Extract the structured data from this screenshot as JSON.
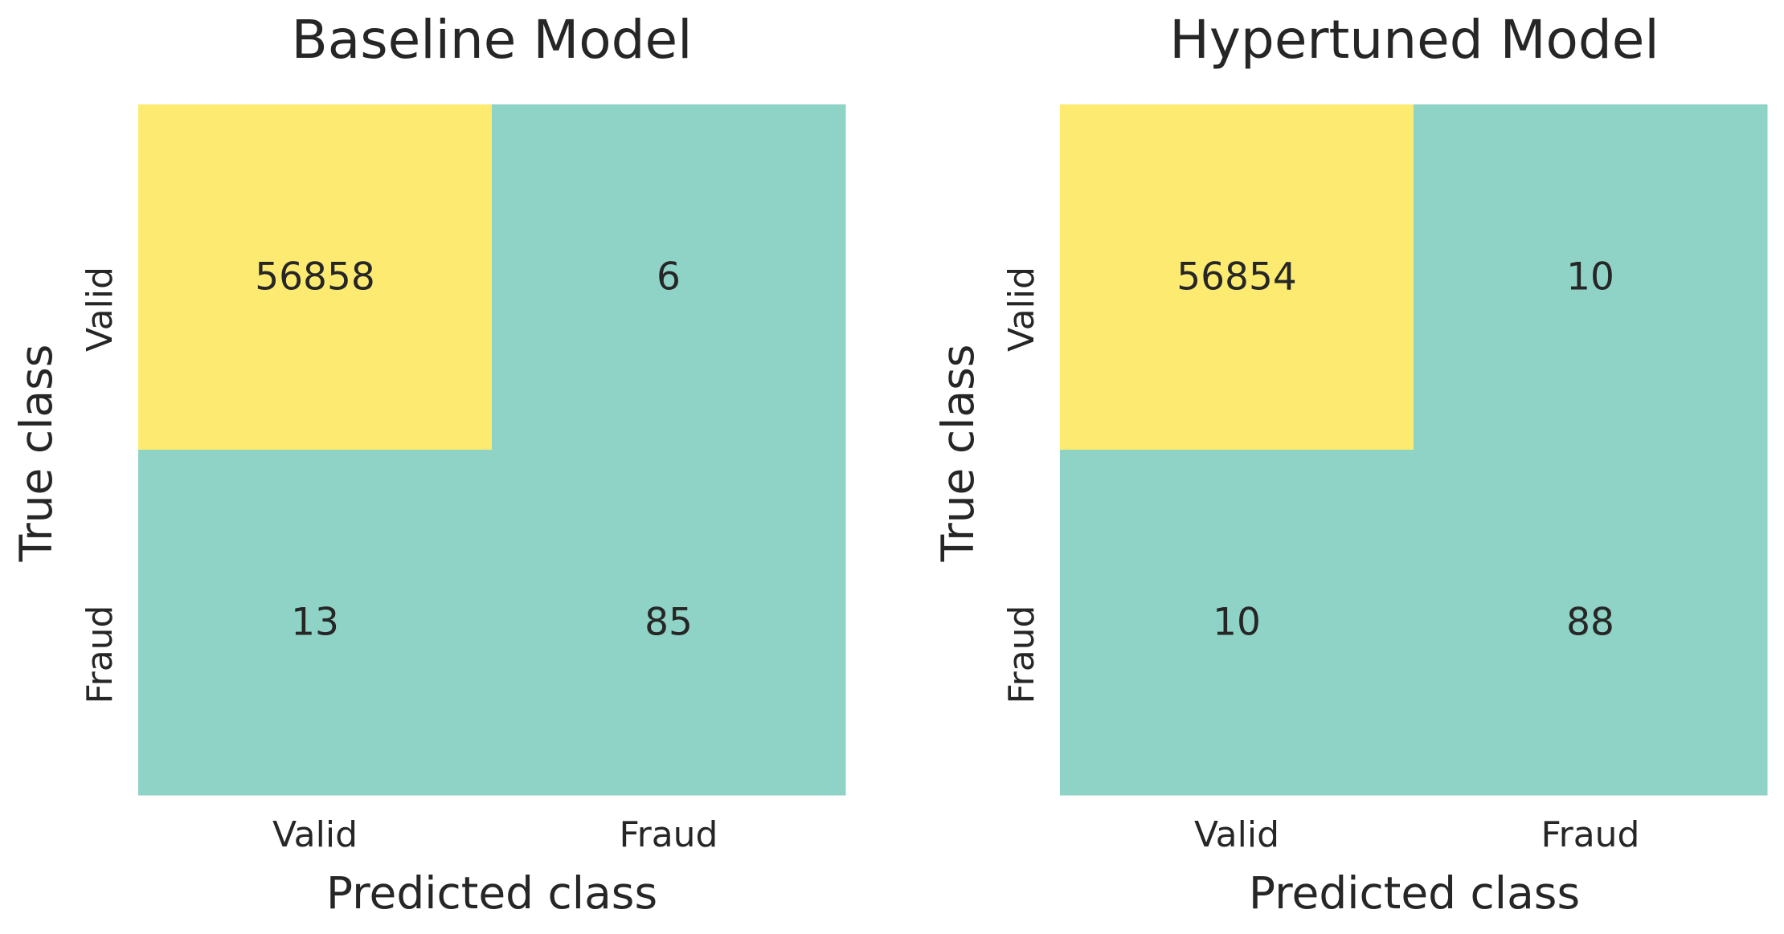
{
  "chart_data": [
    {
      "type": "heatmap",
      "title": "Baseline Model",
      "xlabel": "Predicted class",
      "ylabel": "True class",
      "x_categories": [
        "Valid",
        "Fraud"
      ],
      "y_categories": [
        "Valid",
        "Fraud"
      ],
      "matrix": [
        [
          56858,
          6
        ],
        [
          13,
          85
        ]
      ],
      "colorbar": false,
      "colors": {
        "high": "#fdeb71",
        "low": "#8fd3c7"
      }
    },
    {
      "type": "heatmap",
      "title": "Hypertuned Model",
      "xlabel": "Predicted class",
      "ylabel": "True class",
      "x_categories": [
        "Valid",
        "Fraud"
      ],
      "y_categories": [
        "Valid",
        "Fraud"
      ],
      "matrix": [
        [
          56854,
          10
        ],
        [
          10,
          88
        ]
      ],
      "colorbar": false,
      "colors": {
        "high": "#fdeb71",
        "low": "#8fd3c7"
      }
    }
  ]
}
